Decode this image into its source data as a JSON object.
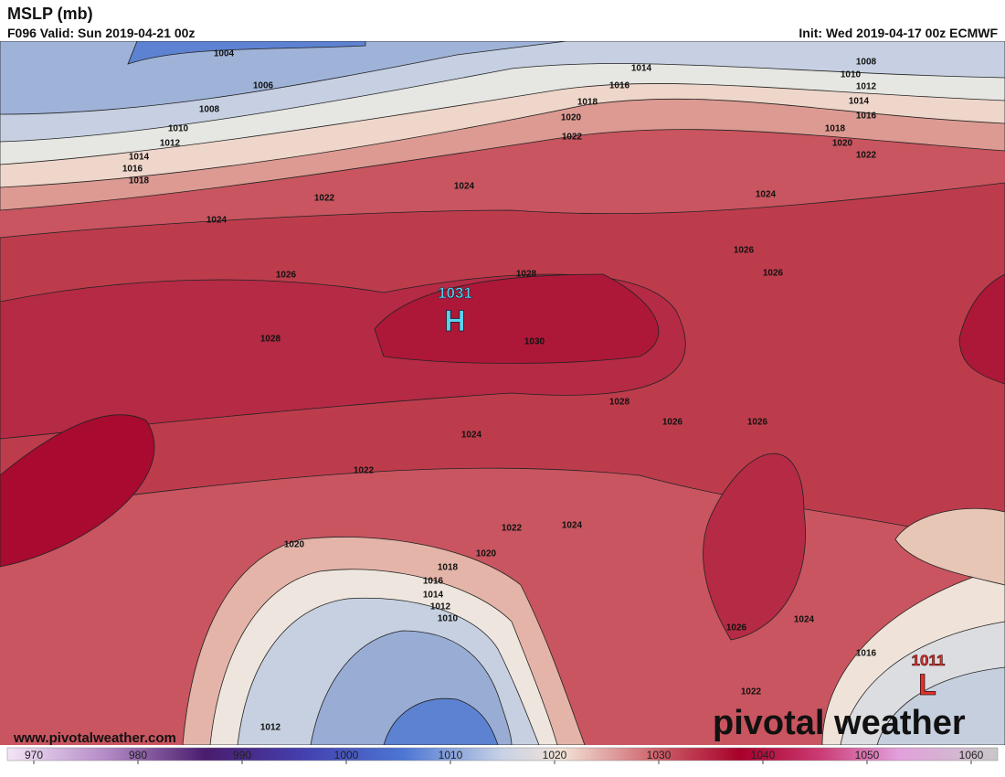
{
  "header": {
    "title": "MSLP (mb)",
    "valid": "F096 Valid: Sun 2019-04-21 00z",
    "init": "Init: Wed 2019-04-17 00z ECMWF"
  },
  "centers": [
    {
      "value": "1031",
      "letter": "H"
    },
    {
      "value": "1011",
      "letter": "L"
    }
  ],
  "isobar_labels": [
    "1004",
    "1006",
    "1008",
    "1010",
    "1012",
    "1014",
    "1016",
    "1018",
    "1022",
    "1024",
    "1026",
    "1028",
    "1024",
    "1028",
    "1030",
    "1028",
    "1026",
    "1026",
    "1024",
    "1022",
    "1022",
    "1024",
    "1020",
    "1020",
    "1018",
    "1016",
    "1014",
    "1012",
    "1010",
    "1026",
    "1024",
    "1022",
    "1016",
    "1012",
    "1018",
    "1020",
    "1022",
    "1014",
    "1016",
    "1008",
    "1010",
    "1012",
    "1014",
    "1016",
    "1018",
    "1020",
    "1022",
    "1024",
    "1026",
    "1026"
  ],
  "colorbar": {
    "ticks": [
      970,
      980,
      990,
      1000,
      1010,
      1020,
      1030,
      1040,
      1050,
      1060
    ]
  },
  "footer": {
    "url": "www.pivotalweather.com",
    "logo": "pivotal weather"
  }
}
